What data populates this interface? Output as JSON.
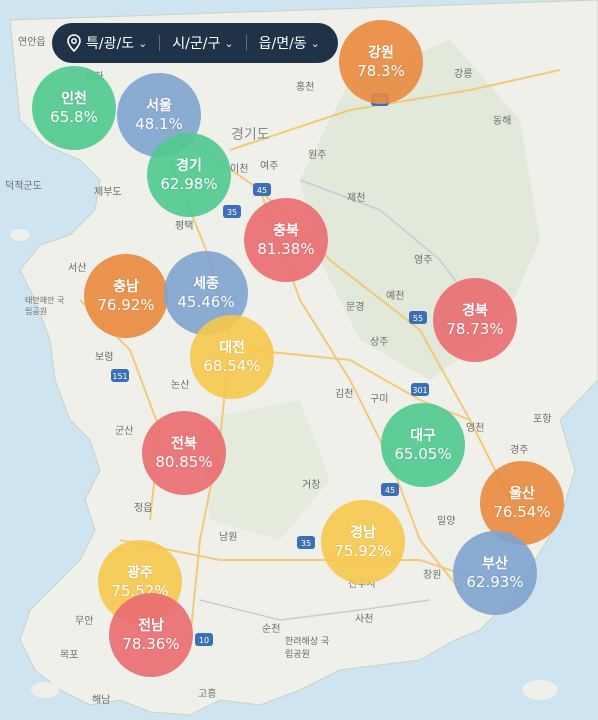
{
  "filters": [
    {
      "label": "특/광/도"
    },
    {
      "label": "시/군/구"
    },
    {
      "label": "읍/면/동"
    }
  ],
  "colors": {
    "orange": "#e98a3e",
    "blue": "#7ea3cf",
    "green": "#4fc98f",
    "red": "#ea6b70",
    "yellow": "#f6c84c"
  },
  "regions": [
    {
      "name": "강원",
      "value": "78.3%",
      "color": "orange"
    },
    {
      "name": "인천",
      "value": "65.8%",
      "color": "green"
    },
    {
      "name": "서울",
      "value": "48.1%",
      "color": "blue"
    },
    {
      "name": "경기",
      "value": "62.98%",
      "color": "green"
    },
    {
      "name": "충북",
      "value": "81.38%",
      "color": "red"
    },
    {
      "name": "충남",
      "value": "76.92%",
      "color": "orange"
    },
    {
      "name": "세종",
      "value": "45.46%",
      "color": "blue"
    },
    {
      "name": "대전",
      "value": "68.54%",
      "color": "yellow"
    },
    {
      "name": "경북",
      "value": "78.73%",
      "color": "red"
    },
    {
      "name": "대구",
      "value": "65.05%",
      "color": "green"
    },
    {
      "name": "전북",
      "value": "80.85%",
      "color": "red"
    },
    {
      "name": "울산",
      "value": "76.54%",
      "color": "orange"
    },
    {
      "name": "경남",
      "value": "75.92%",
      "color": "yellow"
    },
    {
      "name": "부산",
      "value": "62.93%",
      "color": "blue"
    },
    {
      "name": "광주",
      "value": "75.52%",
      "color": "yellow"
    },
    {
      "name": "전남",
      "value": "78.36%",
      "color": "red"
    }
  ],
  "place_labels": [
    "연안읍",
    "강화",
    "홍천",
    "강릉",
    "원주",
    "동해",
    "이천",
    "여주",
    "덕적군도",
    "제부도",
    "제천",
    "평택",
    "서산",
    "태안해안 국립공원",
    "영주",
    "예천",
    "보령",
    "문경",
    "상주",
    "논산",
    "포항",
    "김천",
    "구미",
    "군산",
    "영천",
    "경주",
    "거창",
    "정읍",
    "밀양",
    "남원",
    "창원",
    "진주시",
    "목포",
    "무안",
    "사천",
    "순천",
    "한려해상 국립공원",
    "해남",
    "고흥",
    "경기도"
  ],
  "road_labels": [
    "50",
    "45",
    "35",
    "55",
    "151",
    "301",
    "45",
    "35",
    "10"
  ]
}
